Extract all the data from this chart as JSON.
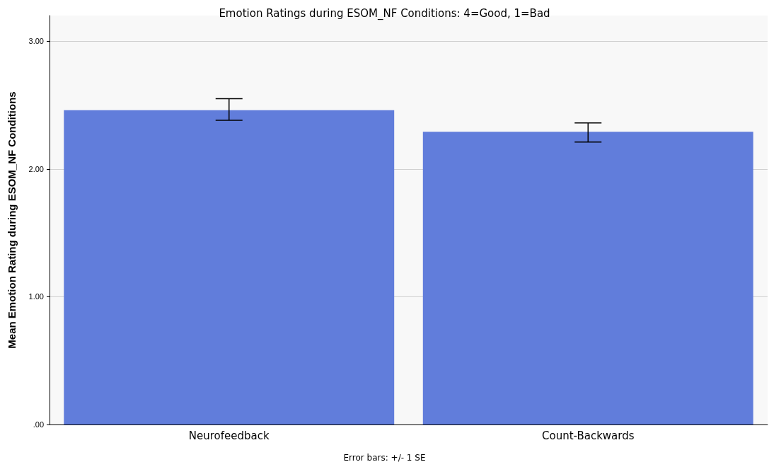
{
  "chart_data": {
    "type": "bar",
    "title": "Emotion Ratings during ESOM_NF Conditions: 4=Good, 1=Bad",
    "ylabel": "Mean Emotion Rating during ESOM_NF Conditions",
    "categories": [
      "Neurofeedback",
      "Count-Backwards"
    ],
    "values": [
      2.46,
      2.29
    ],
    "color": "#617ddb",
    "errors": [
      [
        2.38,
        2.55
      ],
      [
        2.21,
        2.36
      ]
    ],
    "ylim": [
      0,
      3.2
    ],
    "yticks": [
      {
        "value": 0,
        "label": ".00"
      },
      {
        "value": 1,
        "label": "1.00"
      },
      {
        "value": 2,
        "label": "2.00"
      },
      {
        "value": 3,
        "label": "3.00"
      }
    ],
    "grid": "y",
    "annotations": [
      "Error bars: +/- 1 SE"
    ]
  }
}
